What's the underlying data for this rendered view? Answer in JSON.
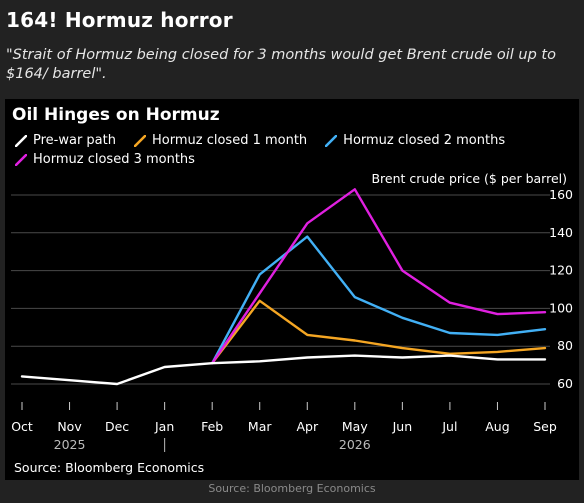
{
  "headline": "164! Hormuz horror",
  "quote": "\"Strait of Hormuz being closed for 3 months would get Brent crude oil up to $164/ barrel\".",
  "footer_source": "Source: Bloomberg Economics",
  "chart_data": {
    "type": "line",
    "title": "Oil Hinges on Hormuz",
    "ylabel": "Brent crude price ($ per barrel)",
    "xlabel": "",
    "x": [
      "Oct",
      "Nov",
      "Dec",
      "Jan",
      "Feb",
      "Mar",
      "Apr",
      "May",
      "Jun",
      "Jul",
      "Aug",
      "Sep"
    ],
    "year_labels": [
      {
        "label": "2025",
        "at": "Nov"
      },
      {
        "label": "2026",
        "at": "May"
      }
    ],
    "ylim": [
      50,
      170
    ],
    "yticks": [
      60,
      80,
      100,
      120,
      140,
      160
    ],
    "grid": "horizontal",
    "legend_position": "top-left",
    "source": "Source: Bloomberg Economics",
    "series": [
      {
        "name": "Pre-war path",
        "color": "#ffffff",
        "values": [
          64,
          62,
          60,
          69,
          71,
          72,
          74,
          75,
          74,
          75,
          73,
          73
        ]
      },
      {
        "name": "Hormuz closed 1 month",
        "color": "#f5a623",
        "values": [
          null,
          null,
          null,
          null,
          71,
          104,
          86,
          83,
          79,
          76,
          77,
          79
        ]
      },
      {
        "name": "Hormuz closed 2 months",
        "color": "#42b0f5",
        "values": [
          null,
          null,
          null,
          null,
          71,
          118,
          138,
          106,
          95,
          87,
          86,
          89
        ]
      },
      {
        "name": "Hormuz closed 3 months",
        "color": "#e020e0",
        "values": [
          null,
          null,
          null,
          null,
          71,
          108,
          145,
          163,
          120,
          103,
          97,
          98
        ]
      }
    ]
  }
}
